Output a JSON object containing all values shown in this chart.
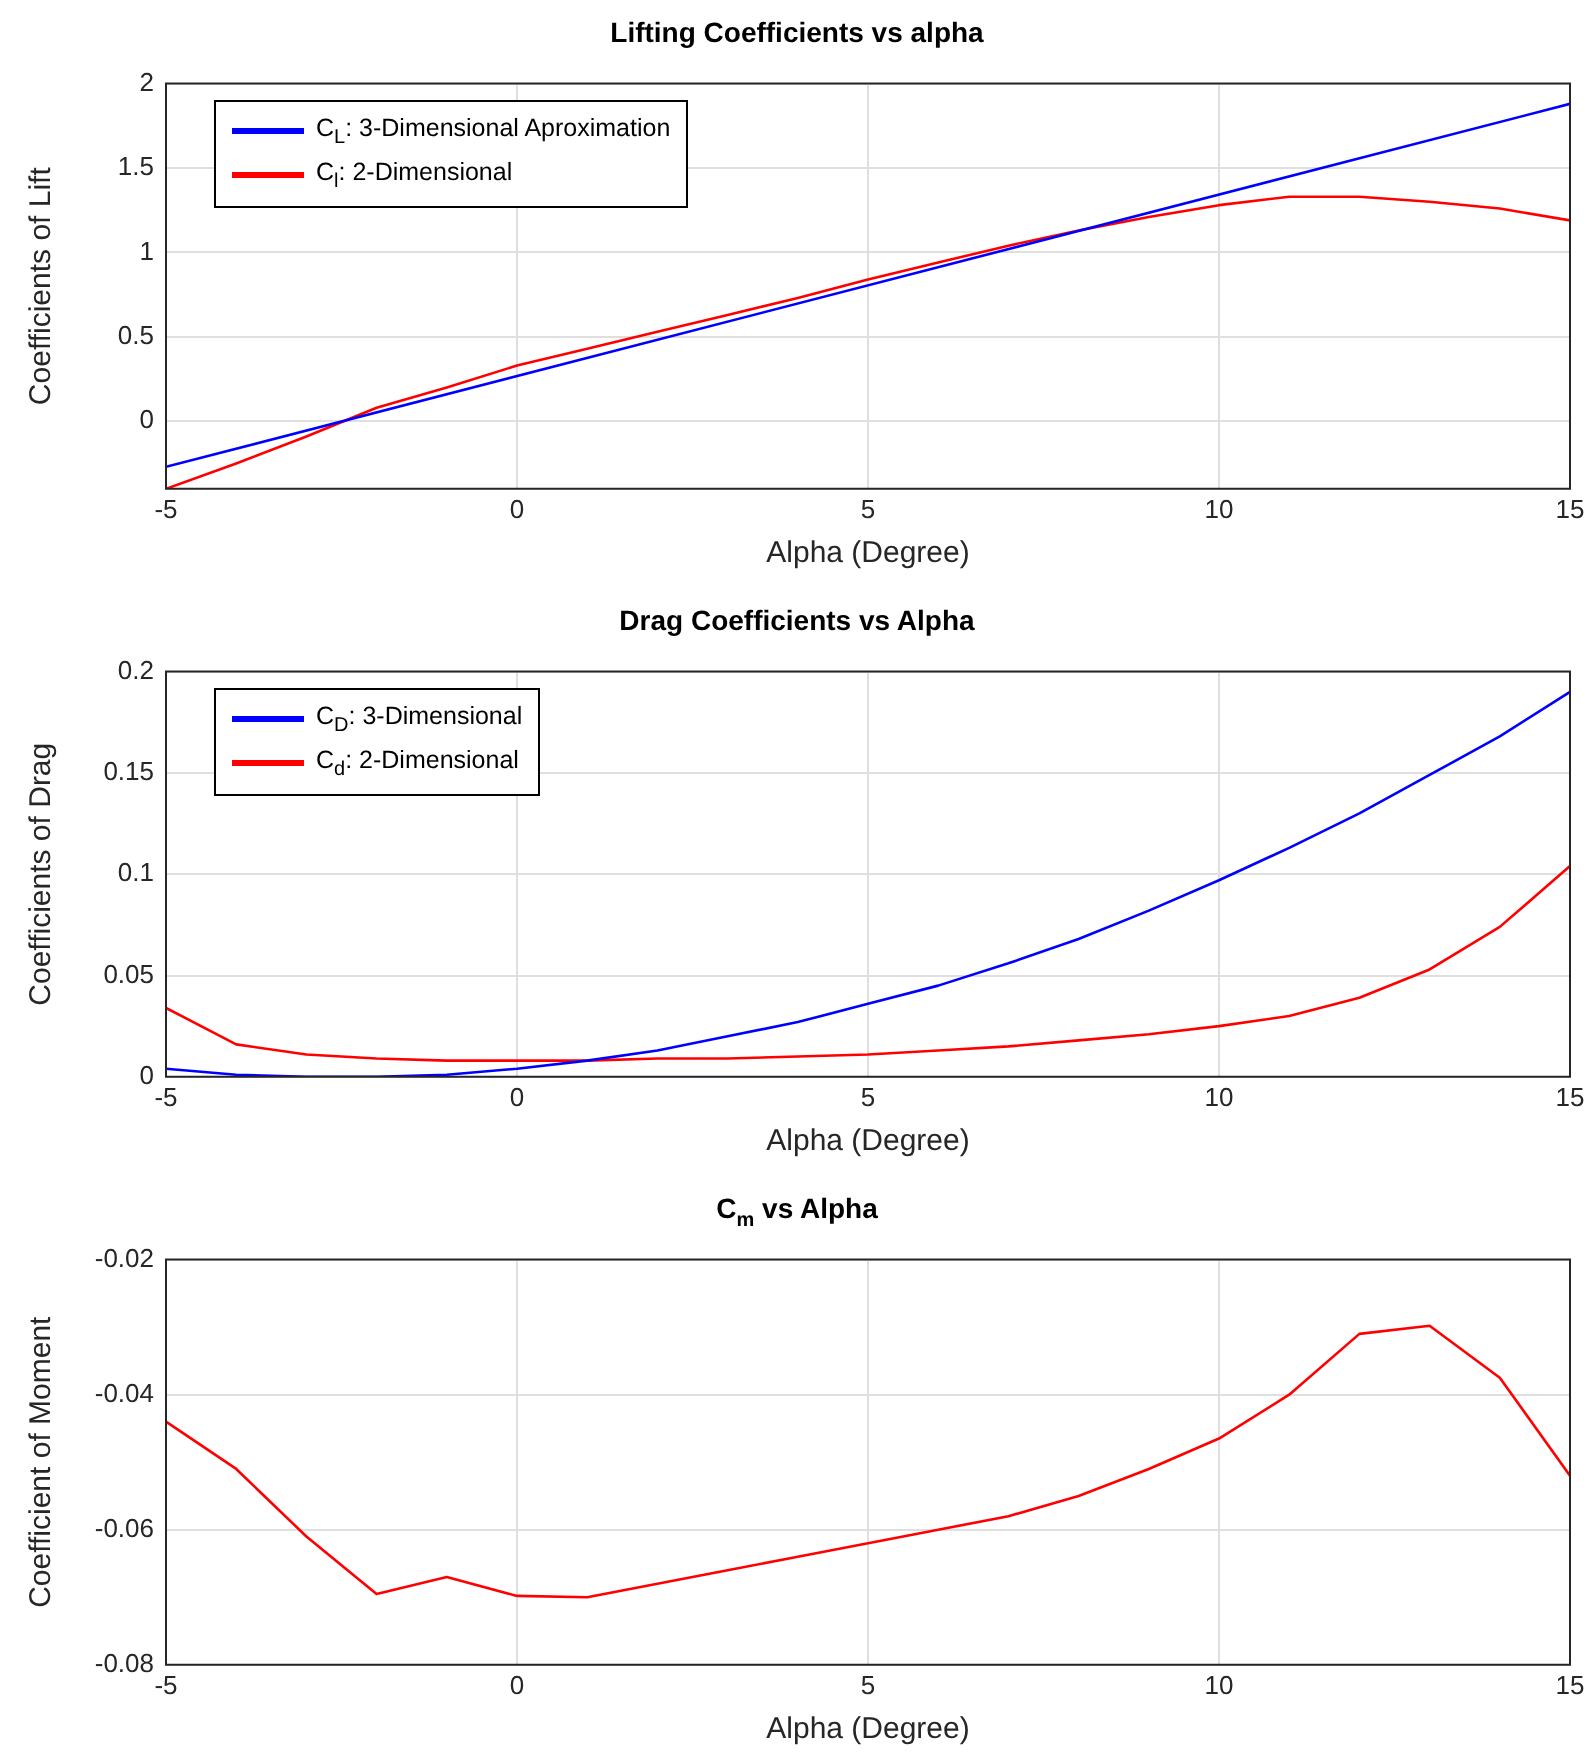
{
  "chart_data": [
    {
      "type": "line",
      "title": "Lifting Coefficients vs alpha",
      "xlabel": "Alpha (Degree)",
      "ylabel": "Coefficients of Lift",
      "x": [
        -5,
        -4,
        -3,
        -2,
        -1,
        0,
        1,
        2,
        3,
        4,
        5,
        6,
        7,
        8,
        9,
        10,
        11,
        12,
        13,
        14,
        15
      ],
      "series": [
        {
          "name": "C$_{L}$: 3-Dimensional Aproximation",
          "color": "#0000ff",
          "x": [
            -5,
            15
          ],
          "values": [
            -0.27,
            1.88
          ]
        },
        {
          "name": "C$_{l}$: 2-Dimensional",
          "color": "#ff0000",
          "values": [
            -0.4,
            -0.25,
            -0.09,
            0.08,
            0.2,
            0.33,
            0.43,
            0.53,
            0.63,
            0.73,
            0.84,
            0.94,
            1.04,
            1.13,
            1.21,
            1.28,
            1.33,
            1.33,
            1.3,
            1.26,
            1.19
          ]
        }
      ],
      "xlim": [
        -5,
        15
      ],
      "xticks": [
        -5,
        0,
        5,
        10,
        15
      ],
      "ylim": [
        -0.4,
        2
      ],
      "yticks": [
        0,
        0.5,
        1,
        1.5,
        2
      ],
      "grid": true,
      "legend": "top left"
    },
    {
      "type": "line",
      "title": "Drag Coefficients vs Alpha",
      "xlabel": "Alpha (Degree)",
      "ylabel": "Coefficients of Drag",
      "x": [
        -5,
        -4,
        -3,
        -2,
        -1,
        0,
        1,
        2,
        3,
        4,
        5,
        6,
        7,
        8,
        9,
        10,
        11,
        12,
        13,
        14,
        15
      ],
      "series": [
        {
          "name": "C$_{D}$: 3-Dimensional",
          "color": "#0000ff",
          "values": [
            0.004,
            0.001,
            0,
            0,
            0.001,
            0.004,
            0.008,
            0.013,
            0.02,
            0.027,
            0.036,
            0.045,
            0.056,
            0.068,
            0.082,
            0.097,
            0.113,
            0.13,
            0.149,
            0.168,
            0.19
          ]
        },
        {
          "name": "C$_{d}$: 2-Dimensional",
          "color": "#ff0000",
          "values": [
            0.034,
            0.016,
            0.011,
            0.009,
            0.008,
            0.008,
            0.008,
            0.009,
            0.009,
            0.01,
            0.011,
            0.013,
            0.015,
            0.018,
            0.021,
            0.025,
            0.03,
            0.039,
            0.053,
            0.074,
            0.104
          ]
        }
      ],
      "xlim": [
        -5,
        15
      ],
      "xticks": [
        -5,
        0,
        5,
        10,
        15
      ],
      "ylim": [
        0,
        0.2
      ],
      "yticks": [
        0,
        0.05,
        0.1,
        0.15,
        0.2
      ],
      "grid": true,
      "legend": "top left"
    },
    {
      "type": "line",
      "title": "C$_{m}$ vs Alpha",
      "xlabel": "Alpha (Degree)",
      "ylabel": "Coefficient of Moment",
      "x": [
        -5,
        -4,
        -3,
        -2,
        -1,
        0,
        1,
        2,
        3,
        4,
        5,
        6,
        7,
        8,
        9,
        10,
        11,
        12,
        13,
        14,
        15
      ],
      "series": [
        {
          "color": "#ff0000",
          "values": [
            -0.044,
            -0.051,
            -0.061,
            -0.0695,
            -0.067,
            -0.0698,
            -0.07,
            -0.068,
            -0.066,
            -0.064,
            -0.062,
            -0.06,
            -0.058,
            -0.055,
            -0.051,
            -0.0465,
            -0.04,
            -0.031,
            -0.0298,
            -0.0375,
            -0.052
          ]
        }
      ],
      "xlim": [
        -5,
        15
      ],
      "xticks": [
        -5,
        0,
        5,
        10,
        15
      ],
      "ylim": [
        -0.08,
        -0.02
      ],
      "yticks": [
        -0.08,
        -0.06,
        -0.04,
        -0.02
      ],
      "grid": true
    }
  ]
}
